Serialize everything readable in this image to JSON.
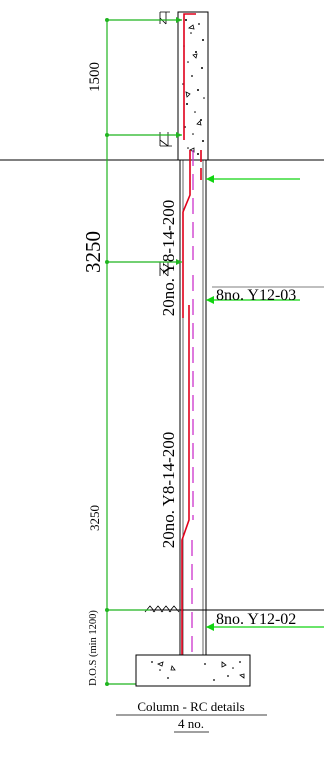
{
  "dimensions": {
    "upper_height": "1500",
    "storey_main": "3250",
    "storey_lower": "3250",
    "depth_of_soil": "D.O.S (min 1200)"
  },
  "annotations": {
    "links_upper": "20no. Y8-14-200",
    "links_lower": "20no. Y8-14-200",
    "bars_upper": "8no. Y12-03",
    "bars_lower": "8no. Y12-02"
  },
  "caption": {
    "title": "Column - RC details",
    "quantity": "4 no."
  },
  "colors": {
    "line": "#000000",
    "dimension": "#1fb51f",
    "rebar_main": "#e0001b",
    "rebar_secondary": "#cc33cc",
    "leader_arrow": "#11d411"
  }
}
